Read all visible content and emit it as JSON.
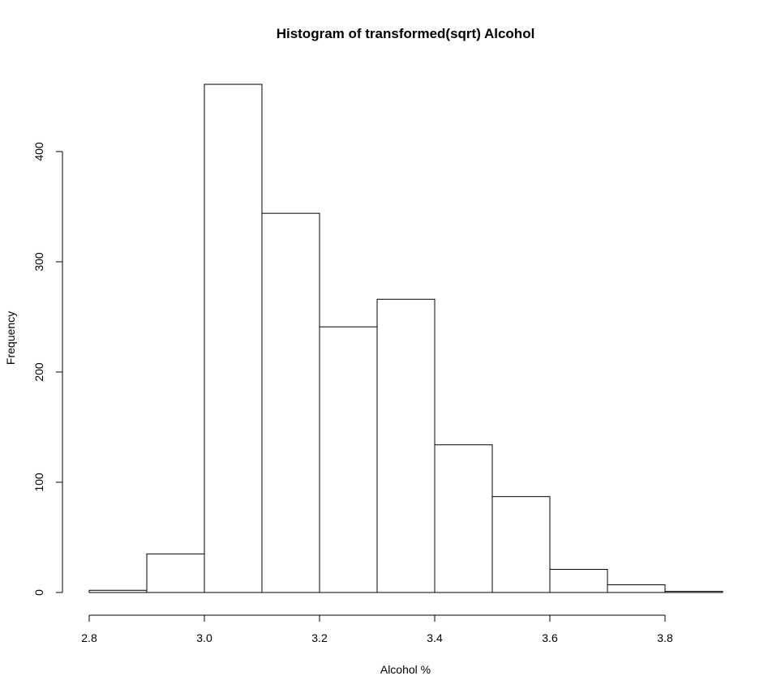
{
  "chart_data": {
    "type": "bar",
    "title": "Histogram of transformed(sqrt) Alcohol",
    "xlabel": "Alcohol %",
    "ylabel": "Frequency",
    "bins": [
      {
        "start": 2.8,
        "end": 2.9,
        "count": 2
      },
      {
        "start": 2.9,
        "end": 3.0,
        "count": 35
      },
      {
        "start": 3.0,
        "end": 3.1,
        "count": 461
      },
      {
        "start": 3.1,
        "end": 3.2,
        "count": 344
      },
      {
        "start": 3.2,
        "end": 3.3,
        "count": 241
      },
      {
        "start": 3.3,
        "end": 3.4,
        "count": 266
      },
      {
        "start": 3.4,
        "end": 3.5,
        "count": 134
      },
      {
        "start": 3.5,
        "end": 3.6,
        "count": 87
      },
      {
        "start": 3.6,
        "end": 3.7,
        "count": 21
      },
      {
        "start": 3.7,
        "end": 3.8,
        "count": 7
      },
      {
        "start": 3.8,
        "end": 3.9,
        "count": 1
      }
    ],
    "xlim": [
      2.8,
      3.9
    ],
    "ylim": [
      0,
      461
    ],
    "x_ticks": [
      "2.8",
      "3.0",
      "3.2",
      "3.4",
      "3.6",
      "3.8"
    ],
    "y_ticks": [
      "0",
      "100",
      "200",
      "300",
      "400"
    ],
    "grid": false,
    "colors": {
      "bar_fill": "#ffffff",
      "bar_stroke": "#000000"
    }
  }
}
